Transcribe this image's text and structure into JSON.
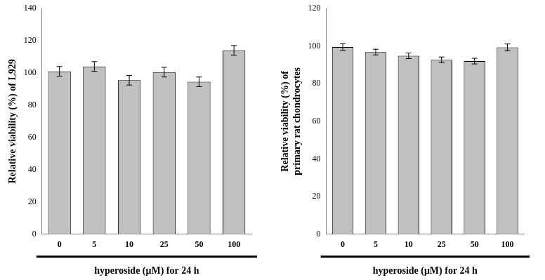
{
  "chart_data": [
    {
      "type": "bar",
      "categories": [
        "0",
        "5",
        "10",
        "25",
        "50",
        "100"
      ],
      "values": [
        101,
        104,
        95.5,
        100.5,
        94.5,
        114
      ],
      "errors": [
        3,
        3,
        3,
        3,
        3,
        3
      ],
      "color": "#c0c0c0",
      "ylim": [
        0,
        140
      ],
      "yticks": [
        0,
        20,
        40,
        60,
        80,
        100,
        120,
        140
      ],
      "grid": false,
      "y_label": [
        "Relative viability (%) of L929"
      ],
      "x_label": "hyperoside (μM) for 24 h"
    },
    {
      "type": "bar",
      "categories": [
        "0",
        "5",
        "10",
        "25",
        "50",
        "100"
      ],
      "values": [
        99.5,
        96.8,
        94.8,
        92.7,
        92,
        99.3
      ],
      "errors": [
        1.8,
        1.5,
        1.5,
        1.5,
        1.5,
        1.8
      ],
      "color": "#c0c0c0",
      "ylim": [
        0,
        120
      ],
      "yticks": [
        0,
        20,
        40,
        60,
        80,
        100,
        120
      ],
      "grid": false,
      "y_label": [
        "Relative viability (%) of",
        "primary rat chondrocytes"
      ],
      "x_label": "hyperoside (μM) for 24 h"
    }
  ]
}
